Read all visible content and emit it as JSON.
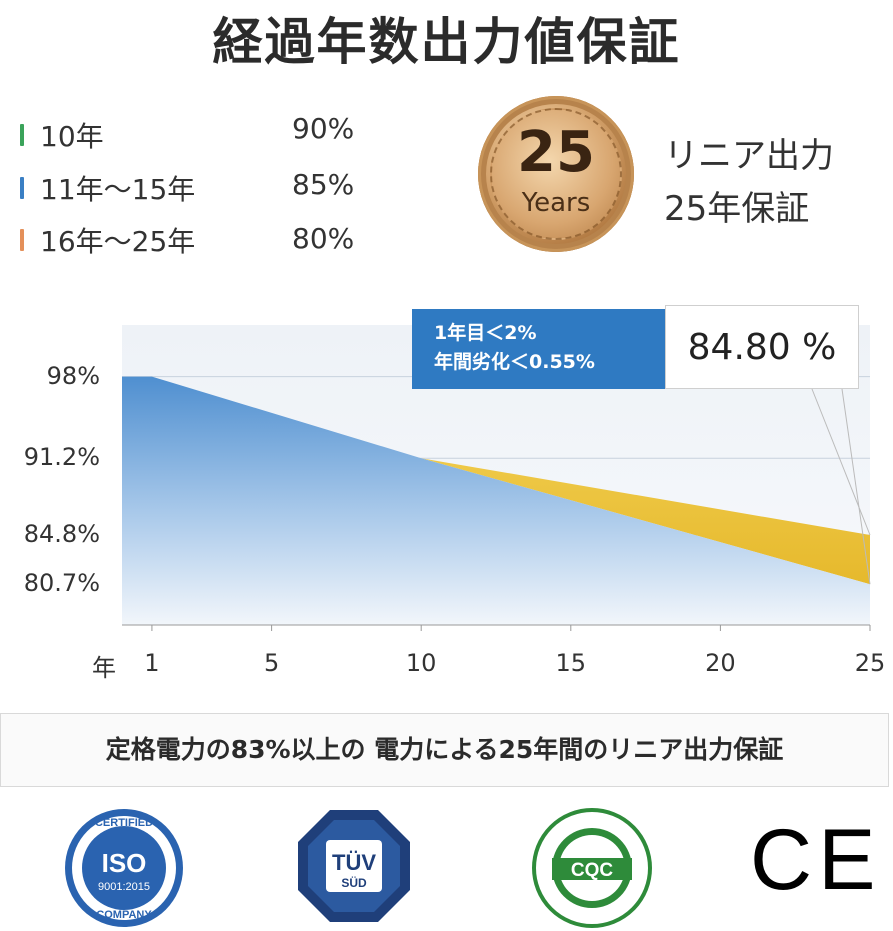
{
  "title": "経過年数出力値保証",
  "legend": [
    {
      "label": "10年",
      "value": "90%",
      "color": "#3aa35a"
    },
    {
      "label": "11年～15年",
      "value": "85%",
      "color": "#3a7fc4"
    },
    {
      "label": "16年～25年",
      "value": "80%",
      "color": "#e4905a"
    }
  ],
  "medal": {
    "number": "25",
    "word": "Years"
  },
  "side_text": {
    "line1": "リニア出力",
    "line2": "25年保証"
  },
  "callout": {
    "line1": "1年目＜2%",
    "line2": "年間劣化＜0.55%",
    "value": "84.80 %"
  },
  "chart_data": {
    "type": "area",
    "x": [
      0,
      1,
      10,
      25
    ],
    "series": [
      {
        "values": [
          98,
          98,
          91.2,
          84.8
        ],
        "color": "#f2c94c"
      },
      {
        "values": [
          98,
          98,
          91.2,
          80.7
        ],
        "color": "#4f8fd0"
      }
    ],
    "yticks": [
      "98%",
      "91.2%",
      "84.8%",
      "80.7%"
    ],
    "ytick_values": [
      98,
      91.2,
      84.8,
      80.7
    ],
    "xticks": [
      "1",
      "5",
      "10",
      "15",
      "20",
      "25"
    ],
    "xtick_values": [
      1,
      5,
      10,
      15,
      20,
      25
    ],
    "xlabel": "年",
    "xlim": [
      0,
      25
    ],
    "ylim": [
      77.3,
      102.3
    ],
    "grid": true
  },
  "banner": "定格電力の83%以上の 電力による25年間のリニア出力保証",
  "badges": {
    "iso_top": "CERTIFIED",
    "iso_mid": "ISO",
    "iso_num": "9001:2015",
    "iso_bottom": "COMPANY",
    "tuv_top": "TÜV",
    "tuv_bottom": "SÜD",
    "cqc_main": "CQC",
    "ce": "CE"
  }
}
